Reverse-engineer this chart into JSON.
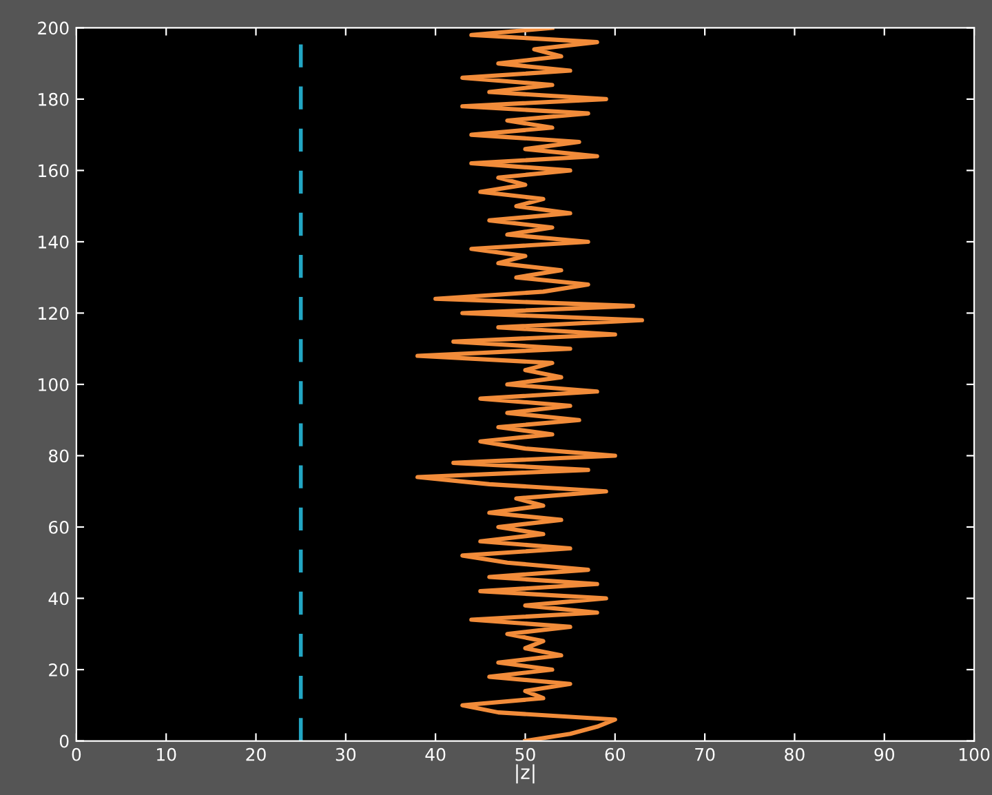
{
  "chart_data": {
    "type": "line",
    "xlabel": "|z|",
    "xlim": [
      0,
      100
    ],
    "xticks": [
      0,
      10,
      20,
      30,
      40,
      50,
      60,
      70,
      80,
      90,
      100
    ],
    "ylim": [
      0,
      200
    ],
    "yticks": [
      0,
      20,
      40,
      60,
      80,
      100,
      120,
      140,
      160,
      180,
      200
    ],
    "grid": false,
    "line_style": "solid",
    "marker": "none",
    "series": [
      {
        "color": "#f28c3a",
        "x": [
          50,
          55,
          58,
          60,
          47,
          43,
          52,
          50,
          55,
          46,
          53,
          47,
          54,
          50,
          52,
          48,
          55,
          44,
          58,
          50,
          59,
          45,
          58,
          46,
          57,
          48,
          43,
          55,
          45,
          52,
          47,
          54,
          46,
          52,
          49,
          59,
          46,
          38,
          57,
          42,
          60,
          50,
          45,
          53,
          47,
          56,
          48,
          55,
          45,
          58,
          48,
          54,
          50,
          53,
          38,
          55,
          42,
          60,
          47,
          63,
          43,
          62,
          40,
          52,
          57,
          49,
          54,
          47,
          50,
          44,
          57,
          48,
          53,
          46,
          55,
          49,
          52,
          45,
          50,
          47,
          55,
          44,
          58,
          50,
          56,
          44,
          53,
          48,
          57,
          43,
          59,
          46,
          53,
          43,
          55,
          47,
          54,
          51,
          58,
          44,
          53
        ],
        "values": [
          0,
          2,
          4,
          6,
          8,
          10,
          12,
          14,
          16,
          18,
          20,
          22,
          24,
          26,
          28,
          30,
          32,
          34,
          36,
          38,
          40,
          42,
          44,
          46,
          48,
          50,
          52,
          54,
          56,
          58,
          60,
          62,
          64,
          66,
          68,
          70,
          72,
          74,
          76,
          78,
          80,
          82,
          84,
          86,
          88,
          90,
          92,
          94,
          96,
          98,
          100,
          102,
          104,
          106,
          108,
          110,
          112,
          114,
          116,
          118,
          120,
          122,
          124,
          126,
          128,
          130,
          132,
          134,
          136,
          138,
          140,
          142,
          144,
          146,
          148,
          150,
          152,
          154,
          156,
          158,
          160,
          162,
          164,
          166,
          168,
          170,
          172,
          174,
          176,
          178,
          180,
          182,
          184,
          186,
          188,
          190,
          192,
          194,
          196,
          198,
          200
        ]
      }
    ],
    "ref_lines": [
      {
        "axis": "x",
        "value": 25,
        "label": null,
        "color": "#22a6c4",
        "line_style": "dashed"
      }
    ]
  }
}
